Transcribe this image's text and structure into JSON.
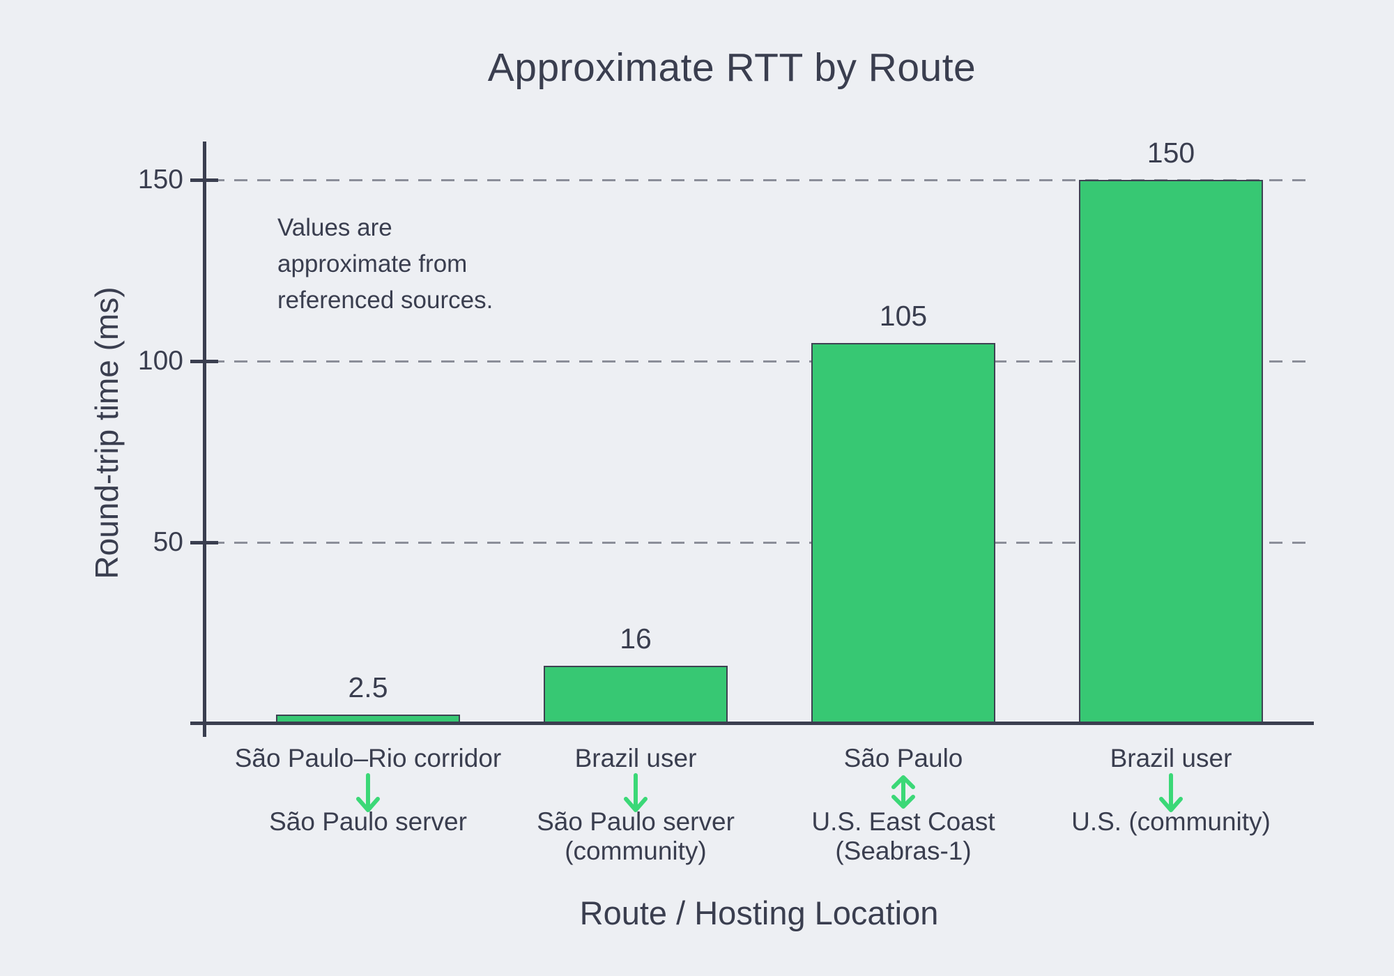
{
  "chart_data": {
    "type": "bar",
    "title": "Approximate RTT by Route",
    "ylabel": "Round-trip time (ms)",
    "xlabel": "Route / Hosting Location",
    "annotation": "Values are\napproximate from\nreferenced sources.",
    "ylim": [
      0,
      160
    ],
    "yticks": [
      50,
      100,
      150
    ],
    "grid": "horizontal-dashed",
    "legend": "none",
    "values": [
      2.5,
      16,
      105,
      150
    ],
    "value_labels": [
      "2.5",
      "16",
      "105",
      "150"
    ],
    "categories": [
      {
        "from": "São Paulo–Rio corridor",
        "arrow": "down",
        "to": "São Paulo server"
      },
      {
        "from": "Brazil user",
        "arrow": "down",
        "to": "São Paulo server\n(community)"
      },
      {
        "from": "São Paulo",
        "arrow": "both",
        "to": "U.S. East Coast\n(Seabras-1)"
      },
      {
        "from": "Brazil user",
        "arrow": "down",
        "to": "U.S. (community)"
      }
    ],
    "colors": {
      "background": "#edeff3",
      "text": "#3a3e4f",
      "bar_fill": "#37c873",
      "bar_edge": "#3e4252",
      "arrow": "#3bd877",
      "gridline": "#8b8e99"
    }
  }
}
